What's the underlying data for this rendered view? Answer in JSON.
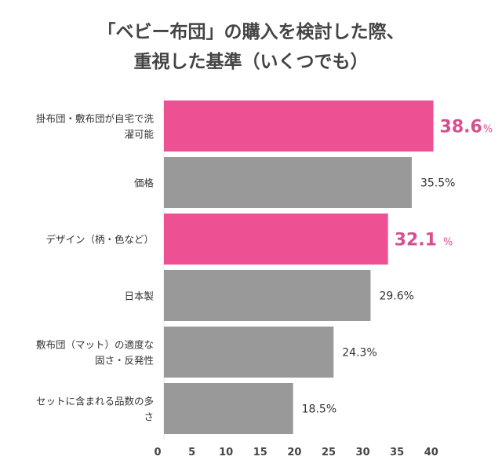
{
  "chart_data": {
    "type": "bar",
    "orientation": "horizontal",
    "title_lines": [
      "「ベビー布団」の購入を検討した際、",
      "重視した基準（いくつでも）"
    ],
    "categories": [
      [
        "掛布団・敷布団が自宅で洗",
        "濯可能"
      ],
      [
        "価格"
      ],
      [
        "デザイン（柄・色など）"
      ],
      [
        "日本製"
      ],
      [
        "敷布団（マット）の適度な",
        "固さ・反発性"
      ],
      [
        "セットに含まれる品数の多",
        "さ"
      ]
    ],
    "values": [
      38.6,
      35.5,
      32.1,
      29.6,
      24.3,
      18.5
    ],
    "value_labels": [
      "38.6",
      "35.5",
      "32.1",
      "29.6",
      "24.3",
      "18.5"
    ],
    "unit": "%",
    "highlighted": [
      true,
      false,
      true,
      false,
      false,
      false
    ],
    "xticks": [
      "0",
      "5",
      "10",
      "15",
      "20",
      "25",
      "30",
      "35",
      "40"
    ],
    "xlim": [
      0,
      40
    ],
    "grid": false,
    "colors": {
      "highlight": "#ee5193",
      "highlight_label": "#d64f8f",
      "default": "#999999",
      "label": "#333333"
    }
  }
}
